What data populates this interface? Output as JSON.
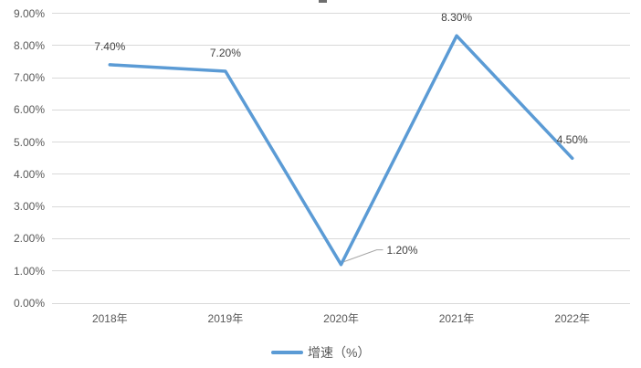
{
  "colors": {
    "line": "#5B9BD5",
    "grid": "#D9D9D9",
    "axis_text": "#595959",
    "data_label_text": "#404040",
    "leader": "#A6A6A6",
    "background": "#FFFFFF"
  },
  "chart_data": {
    "type": "line",
    "title": "",
    "categories": [
      "2018年",
      "2019年",
      "2020年",
      "2021年",
      "2022年"
    ],
    "series": [
      {
        "name": "增速（%）",
        "values": [
          7.4,
          7.2,
          1.2,
          8.3,
          4.5
        ]
      }
    ],
    "point_labels": [
      "7.40%",
      "7.20%",
      "1.20%",
      "8.30%",
      "4.50%"
    ],
    "y_ticks": [
      "0.00%",
      "1.00%",
      "2.00%",
      "3.00%",
      "4.00%",
      "5.00%",
      "6.00%",
      "7.00%",
      "8.00%",
      "9.00%"
    ],
    "xlabel": "",
    "ylabel": "",
    "ylim": [
      0,
      9
    ],
    "grid": true,
    "legend_position": "bottom",
    "label_placements": [
      "above",
      "above",
      "leader-right",
      "above",
      "above"
    ]
  }
}
